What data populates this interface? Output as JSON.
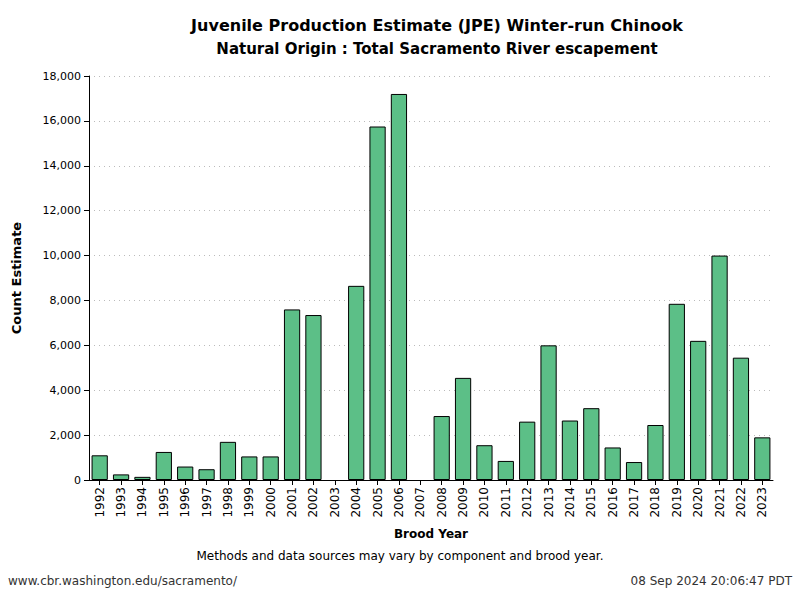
{
  "chart_data": {
    "type": "bar",
    "title": "Juvenile Production Estimate (JPE) Winter-run Chinook",
    "subtitle": "Natural Origin : Total Sacramento River escapement",
    "x_label": "Brood Year",
    "y_label": "Count Estimate",
    "annotations": [
      "Methods and data sources may vary by component and brood year.",
      "www.cbr.washington.edu/sacramento/",
      "08 Sep 2024 20:06:47 PDT"
    ],
    "categories": [
      "1992",
      "1993",
      "1994",
      "1995",
      "1996",
      "1997",
      "1998",
      "1999",
      "2000",
      "2001",
      "2002",
      "2003",
      "2004",
      "2005",
      "2006",
      "2007",
      "2008",
      "2009",
      "2010",
      "2011",
      "2012",
      "2013",
      "2014",
      "2015",
      "2016",
      "2017",
      "2018",
      "2019",
      "2020",
      "2021",
      "2022",
      "2023"
    ],
    "values": [
      1100,
      250,
      140,
      1250,
      600,
      480,
      1700,
      1050,
      1050,
      7600,
      7350,
      null,
      8650,
      15750,
      17200,
      null,
      2850,
      4550,
      1550,
      850,
      2600,
      6000,
      2650,
      3200,
      1450,
      800,
      2450,
      7850,
      6200,
      10000,
      5450,
      1900
    ],
    "color": "#5cbf87",
    "ylim": [
      0,
      18000
    ],
    "yticks": [
      0,
      {
        "value": 2000,
        "label": "2,000"
      },
      {
        "value": 4000,
        "label": "4,000"
      },
      {
        "value": 6000,
        "label": "6,000"
      },
      {
        "value": 8000,
        "label": "8,000"
      },
      {
        "value": 10000,
        "label": "10,000"
      },
      {
        "value": 12000,
        "label": "12,000"
      },
      {
        "value": 14000,
        "label": "14,000"
      },
      {
        "value": 16000,
        "label": "16,000"
      },
      {
        "value": 18000,
        "label": "18,000"
      }
    ],
    "grid": true
  }
}
